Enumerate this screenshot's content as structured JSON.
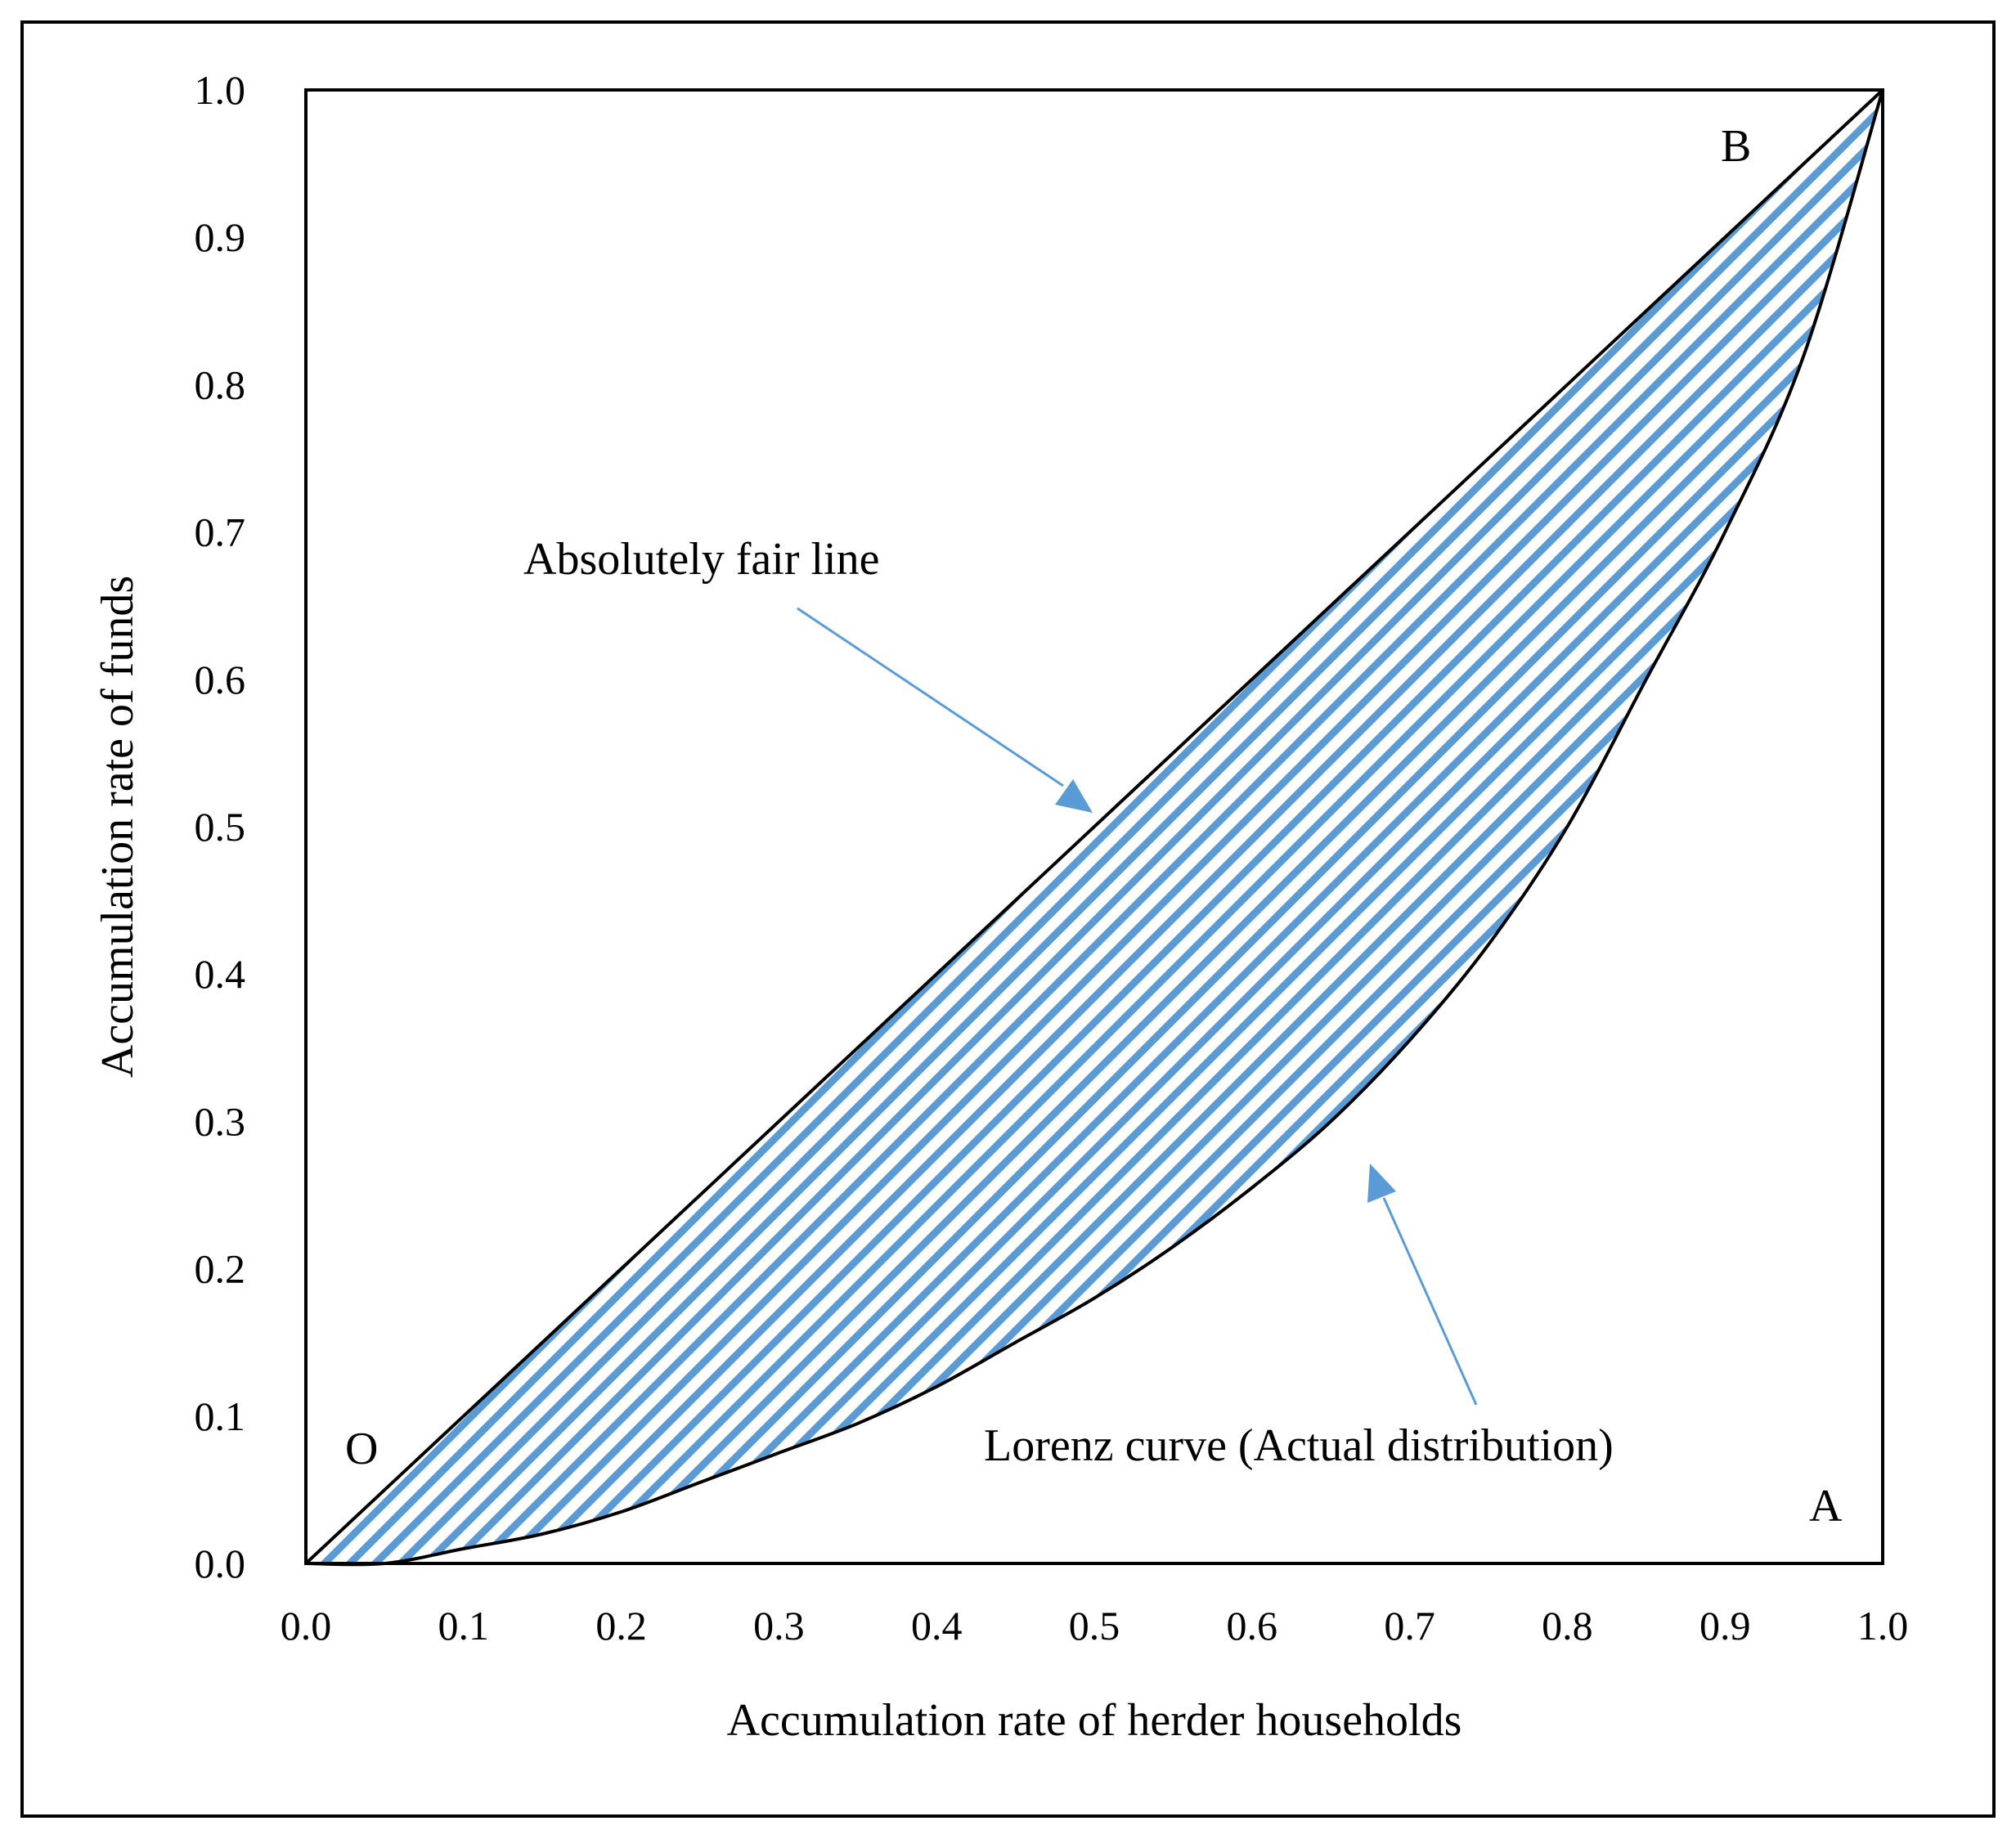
{
  "chart_data": {
    "type": "line",
    "xlabel": "Accumulation rate of herder households",
    "ylabel": "Accumulation rate of funds",
    "xlim": [
      0,
      1
    ],
    "ylim": [
      0,
      1
    ],
    "x_ticks": [
      "0.0",
      "0.1",
      "0.2",
      "0.3",
      "0.4",
      "0.5",
      "0.6",
      "0.7",
      "0.8",
      "0.9",
      "1.0"
    ],
    "y_ticks": [
      "0.0",
      "0.1",
      "0.2",
      "0.3",
      "0.4",
      "0.5",
      "0.6",
      "0.7",
      "0.8",
      "0.9",
      "1.0"
    ],
    "grid": false,
    "series": [
      {
        "x": [
          0,
          1
        ],
        "y": [
          0,
          1
        ],
        "color": "#000000"
      },
      {
        "x": [
          0,
          0.05,
          0.1,
          0.15,
          0.2,
          0.25,
          0.3,
          0.35,
          0.4,
          0.45,
          0.5,
          0.55,
          0.6,
          0.65,
          0.7,
          0.75,
          0.8,
          0.85,
          0.9,
          0.95,
          1.0
        ],
        "y": [
          0,
          0.0,
          0.01,
          0.02,
          0.035,
          0.055,
          0.075,
          0.095,
          0.12,
          0.15,
          0.18,
          0.215,
          0.255,
          0.3,
          0.355,
          0.42,
          0.5,
          0.6,
          0.7,
          0.82,
          1.0
        ],
        "color": "#000000"
      }
    ],
    "shaded_region_color": "#5b9bd5",
    "annotations": {
      "fair_line_label": "Absolutely fair line",
      "lorenz_label": "Lorenz curve (Actual distribution)",
      "point_o": "O",
      "point_a": "A",
      "point_b": "B"
    }
  }
}
